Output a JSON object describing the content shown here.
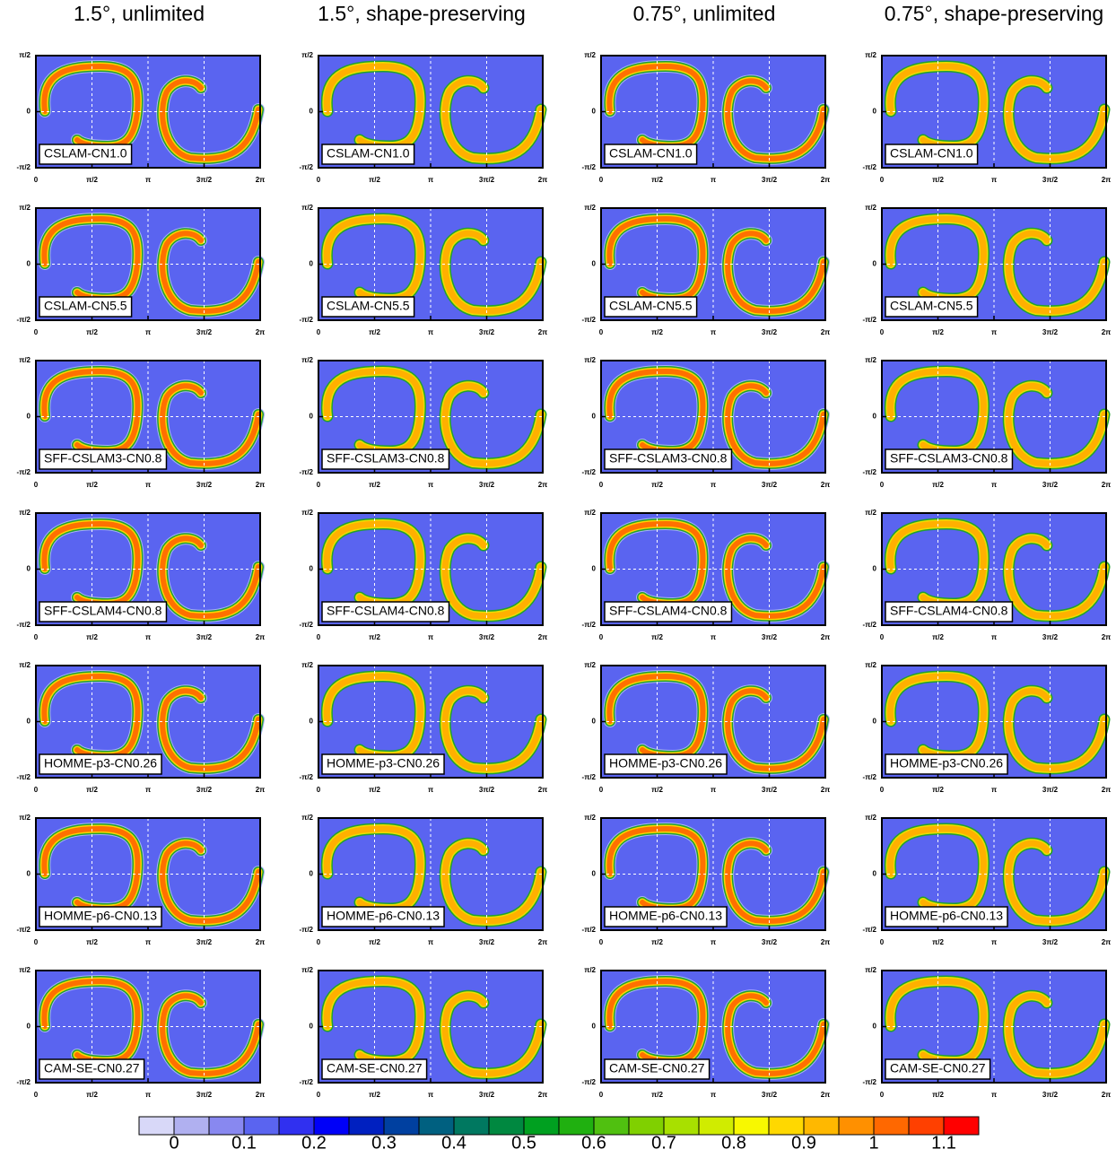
{
  "columns": [
    "1.5°, unlimited",
    "1.5°, shape-preserving",
    "0.75°, unlimited",
    "0.75°, shape-preserving"
  ],
  "rows": [
    [
      "CSLAM-CN1.0",
      "CSLAM-CN1.0",
      "CSLAM-CN1.0",
      "CSLAM-CN1.0"
    ],
    [
      "CSLAM-CN5.5",
      "CSLAM-CN5.5",
      "CSLAM-CN5.5",
      "CSLAM-CN5.5"
    ],
    [
      "SFF-CSLAM3-CN0.8",
      "SFF-CSLAM3-CN0.8",
      "SFF-CSLAM3-CN0.8",
      "SFF-CSLAM3-CN0.8"
    ],
    [
      "SFF-CSLAM4-CN0.8",
      "SFF-CSLAM4-CN0.8",
      "SFF-CSLAM4-CN0.8",
      "SFF-CSLAM4-CN0.8"
    ],
    [
      "HOMME-p3-CN0.26",
      "HOMME-p3-CN0.26",
      "HOMME-p3-CN0.26",
      "HOMME-p3-CN0.26"
    ],
    [
      "HOMME-p6-CN0.13",
      "HOMME-p6-CN0.13",
      "HOMME-p6-CN0.13",
      "HOMME-p6-CN0.13"
    ],
    [
      "CAM-SE-CN0.27",
      "CAM-SE-CN0.27",
      "CAM-SE-CN0.27",
      "CAM-SE-CN0.27"
    ]
  ],
  "x_ticks": [
    "0",
    "π/2",
    "π",
    "3π/2",
    "2π"
  ],
  "y_ticks": [
    "π/2",
    "0",
    "-π/2"
  ],
  "colorbar": {
    "labels": [
      "0",
      "0.1",
      "0.2",
      "0.3",
      "0.4",
      "0.5",
      "0.6",
      "0.7",
      "0.8",
      "0.9",
      "1",
      "1.1"
    ],
    "colors": [
      "#d8d8f8",
      "#b0b0f0",
      "#8888f0",
      "#5a64f0",
      "#3030f0",
      "#0000f8",
      "#0020c0",
      "#0040a0",
      "#006080",
      "#007860",
      "#008840",
      "#00a020",
      "#20b010",
      "#50c010",
      "#80d000",
      "#a8e000",
      "#d0ec00",
      "#f8f800",
      "#ffd800",
      "#ffb800",
      "#ff9000",
      "#ff6800",
      "#ff4000",
      "#ff0000"
    ]
  }
}
